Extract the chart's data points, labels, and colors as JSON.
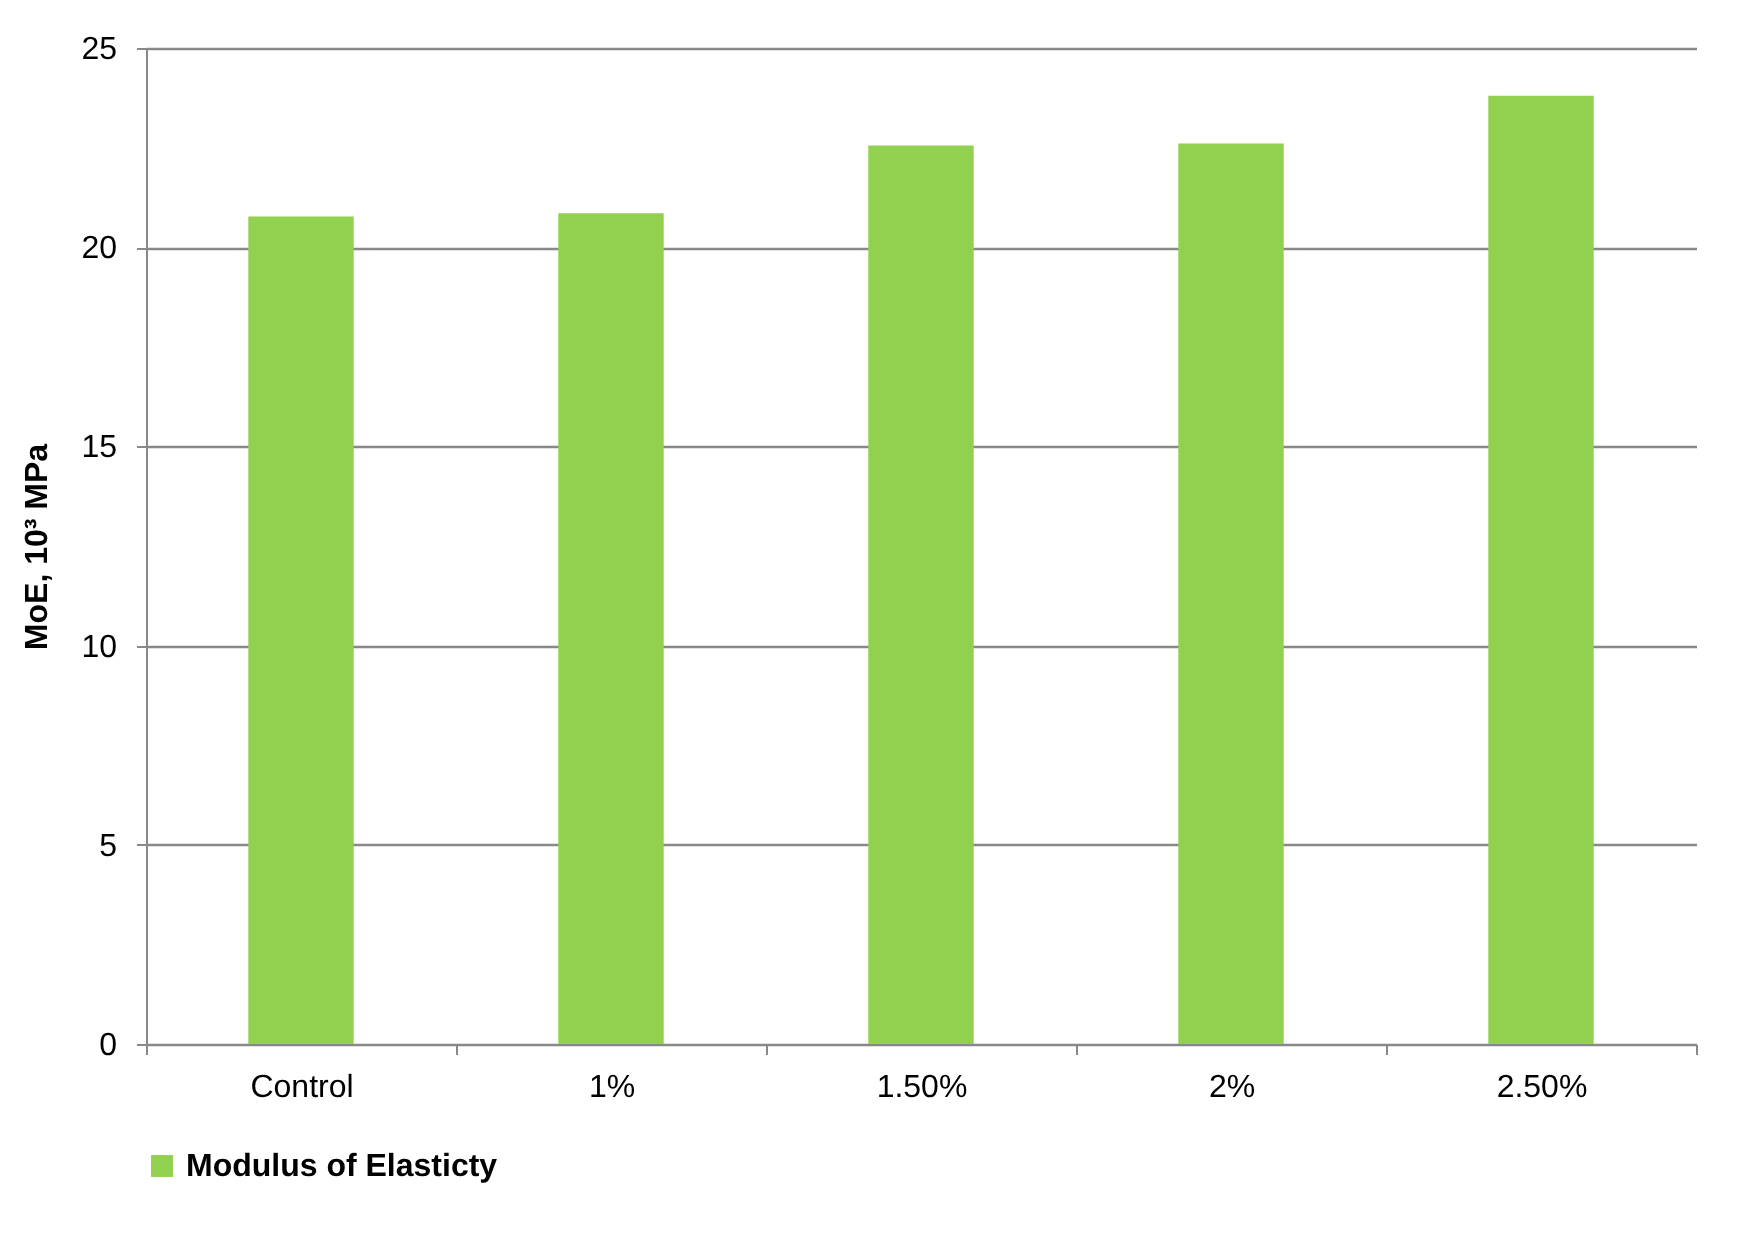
{
  "chart_data": {
    "type": "bar",
    "ylabel": "MoE, 10³ MPa",
    "categories": [
      "Control",
      "1%",
      "1.50%",
      "2%",
      "2.50%"
    ],
    "series": [
      {
        "name": "Modulus of Elasticty",
        "color": "#92d050",
        "values": [
          20.77,
          20.85,
          22.55,
          22.6,
          23.8
        ]
      }
    ],
    "ylim": [
      0,
      25
    ],
    "yticks": [
      0,
      5,
      10,
      15,
      20,
      25
    ],
    "grid": "y",
    "legend": "bottom"
  }
}
